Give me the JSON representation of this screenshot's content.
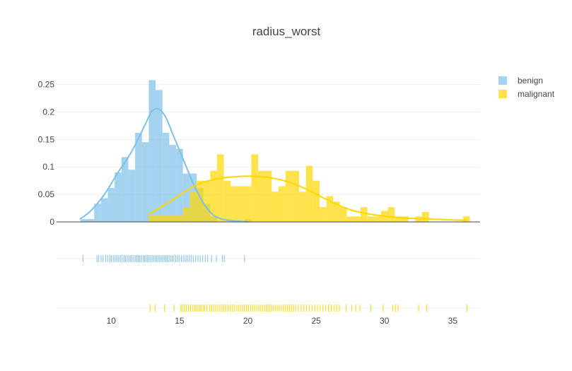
{
  "chart_data": {
    "type": "histogram",
    "title": "radius_worst",
    "xlabel": "",
    "ylabel": "",
    "xlim": [
      6.0,
      37.0
    ],
    "ylim": [
      0,
      0.27
    ],
    "x_ticks": [
      10,
      15,
      20,
      25,
      30,
      35
    ],
    "y_ticks": [
      0,
      0.05,
      0.1,
      0.15,
      0.2,
      0.25
    ],
    "y_tick_labels": [
      "0",
      "0.05",
      "0.1",
      "0.15",
      "0.2",
      "0.25"
    ],
    "grid": true,
    "legend_position": "top-right",
    "bin_width": 0.5,
    "series": [
      {
        "name": "benign",
        "color": "#7EC0E8",
        "bars": [
          {
            "x0": 7.75,
            "y": 0.005
          },
          {
            "x0": 8.25,
            "y": 0.005
          },
          {
            "x0": 8.75,
            "y": 0.033
          },
          {
            "x0": 9.25,
            "y": 0.043
          },
          {
            "x0": 9.75,
            "y": 0.062
          },
          {
            "x0": 10.25,
            "y": 0.09
          },
          {
            "x0": 10.75,
            "y": 0.118
          },
          {
            "x0": 11.25,
            "y": 0.095
          },
          {
            "x0": 11.75,
            "y": 0.162
          },
          {
            "x0": 12.25,
            "y": 0.145
          },
          {
            "x0": 12.75,
            "y": 0.258
          },
          {
            "x0": 13.25,
            "y": 0.24
          },
          {
            "x0": 13.75,
            "y": 0.162
          },
          {
            "x0": 14.25,
            "y": 0.14
          },
          {
            "x0": 14.75,
            "y": 0.133
          },
          {
            "x0": 15.25,
            "y": 0.088
          },
          {
            "x0": 15.75,
            "y": 0.088
          },
          {
            "x0": 16.25,
            "y": 0.062
          },
          {
            "x0": 16.75,
            "y": 0.033
          },
          {
            "x0": 17.25,
            "y": 0.01
          },
          {
            "x0": 19.75,
            "y": 0.005
          }
        ],
        "kde_x": [
          7.7,
          8.5,
          9.5,
          10.5,
          11.5,
          12.5,
          13.0,
          13.5,
          14.0,
          14.5,
          15.0,
          15.5,
          16.0,
          16.5,
          17.0,
          17.5,
          18.0,
          18.5,
          19.0,
          19.5,
          20.0
        ],
        "kde_y": [
          0.005,
          0.02,
          0.05,
          0.09,
          0.128,
          0.178,
          0.202,
          0.205,
          0.19,
          0.16,
          0.13,
          0.1,
          0.07,
          0.045,
          0.025,
          0.012,
          0.006,
          0.003,
          0.002,
          0.001,
          0.0
        ],
        "rug_x": [
          7.93,
          8.96,
          9.09,
          9.26,
          9.41,
          9.6,
          9.74,
          9.9,
          10.02,
          10.15,
          10.29,
          10.41,
          10.55,
          10.67,
          10.8,
          10.94,
          11.05,
          11.17,
          11.29,
          11.4,
          11.52,
          11.64,
          11.76,
          11.87,
          11.98,
          12.09,
          12.2,
          12.33,
          12.44,
          12.55,
          12.66,
          12.77,
          12.88,
          12.99,
          13.1,
          13.21,
          13.32,
          13.44,
          13.55,
          13.66,
          13.77,
          13.88,
          13.99,
          14.1,
          14.23,
          14.34,
          14.46,
          14.59,
          14.72,
          14.86,
          14.99,
          15.13,
          15.27,
          15.41,
          15.55,
          15.7,
          15.85,
          16.0,
          16.18,
          16.35,
          16.51,
          16.7,
          16.88,
          17.06,
          17.34,
          17.7,
          18.13,
          18.27,
          19.76
        ]
      },
      {
        "name": "malignant",
        "color": "#FFD700",
        "bars": [
          {
            "x0": 12.75,
            "y": 0.012
          },
          {
            "x0": 13.25,
            "y": 0.012
          },
          {
            "x0": 13.75,
            "y": 0.012
          },
          {
            "x0": 14.25,
            "y": 0.012
          },
          {
            "x0": 14.75,
            "y": 0.012
          },
          {
            "x0": 15.25,
            "y": 0.027
          },
          {
            "x0": 15.75,
            "y": 0.055
          },
          {
            "x0": 16.25,
            "y": 0.075
          },
          {
            "x0": 16.75,
            "y": 0.075
          },
          {
            "x0": 17.25,
            "y": 0.093
          },
          {
            "x0": 17.75,
            "y": 0.123
          },
          {
            "x0": 18.25,
            "y": 0.075
          },
          {
            "x0": 18.75,
            "y": 0.065
          },
          {
            "x0": 19.25,
            "y": 0.065
          },
          {
            "x0": 19.75,
            "y": 0.065
          },
          {
            "x0": 20.25,
            "y": 0.123
          },
          {
            "x0": 20.75,
            "y": 0.093
          },
          {
            "x0": 21.25,
            "y": 0.093
          },
          {
            "x0": 21.75,
            "y": 0.055
          },
          {
            "x0": 22.25,
            "y": 0.065
          },
          {
            "x0": 22.75,
            "y": 0.093
          },
          {
            "x0": 23.25,
            "y": 0.093
          },
          {
            "x0": 23.75,
            "y": 0.055
          },
          {
            "x0": 24.25,
            "y": 0.102
          },
          {
            "x0": 24.75,
            "y": 0.075
          },
          {
            "x0": 25.25,
            "y": 0.027
          },
          {
            "x0": 25.75,
            "y": 0.047
          },
          {
            "x0": 26.25,
            "y": 0.037
          },
          {
            "x0": 26.75,
            "y": 0.027
          },
          {
            "x0": 27.25,
            "y": 0.01
          },
          {
            "x0": 27.75,
            "y": 0.01
          },
          {
            "x0": 28.25,
            "y": 0.027
          },
          {
            "x0": 28.75,
            "y": 0.01
          },
          {
            "x0": 29.25,
            "y": 0.01
          },
          {
            "x0": 29.75,
            "y": 0.02
          },
          {
            "x0": 30.25,
            "y": 0.027
          },
          {
            "x0": 30.75,
            "y": 0.01
          },
          {
            "x0": 31.25,
            "y": 0.01
          },
          {
            "x0": 32.25,
            "y": 0.01
          },
          {
            "x0": 32.75,
            "y": 0.018
          },
          {
            "x0": 35.75,
            "y": 0.01
          }
        ],
        "kde_x": [
          12.7,
          13.5,
          14.5,
          15.5,
          16.5,
          17.5,
          18.5,
          19.5,
          20.5,
          21.5,
          22.5,
          23.5,
          24.5,
          25.5,
          26.5,
          27.5,
          28.5,
          29.5,
          30.5,
          31.5,
          32.5,
          33.5,
          34.5,
          35.5,
          36.0
        ],
        "kde_y": [
          0.014,
          0.025,
          0.04,
          0.057,
          0.07,
          0.077,
          0.081,
          0.083,
          0.083,
          0.081,
          0.076,
          0.068,
          0.057,
          0.044,
          0.032,
          0.022,
          0.016,
          0.012,
          0.009,
          0.007,
          0.006,
          0.005,
          0.004,
          0.003,
          0.003
        ],
        "rug_x": [
          12.84,
          13.2,
          13.9,
          14.6,
          15.1,
          15.2,
          15.35,
          15.5,
          15.65,
          15.8,
          15.95,
          16.1,
          16.2,
          16.35,
          16.5,
          16.6,
          16.75,
          16.85,
          17.0,
          17.2,
          17.35,
          17.5,
          17.65,
          17.8,
          17.95,
          18.1,
          18.25,
          18.4,
          18.55,
          18.7,
          18.85,
          19.0,
          19.15,
          19.3,
          19.45,
          19.6,
          19.75,
          19.9,
          20.05,
          20.2,
          20.35,
          20.5,
          20.65,
          20.8,
          20.95,
          21.1,
          21.25,
          21.4,
          21.55,
          21.7,
          21.85,
          22.0,
          22.15,
          22.3,
          22.45,
          22.6,
          22.75,
          22.9,
          23.05,
          23.2,
          23.35,
          23.5,
          23.7,
          23.9,
          24.1,
          24.3,
          24.5,
          24.7,
          24.9,
          25.1,
          25.3,
          25.5,
          25.7,
          25.9,
          26.1,
          26.3,
          26.5,
          26.7,
          27.2,
          27.6,
          27.9,
          28.2,
          29.0,
          29.9,
          30.6,
          30.8,
          31.0,
          32.5,
          33.1,
          36.04
        ]
      }
    ]
  }
}
